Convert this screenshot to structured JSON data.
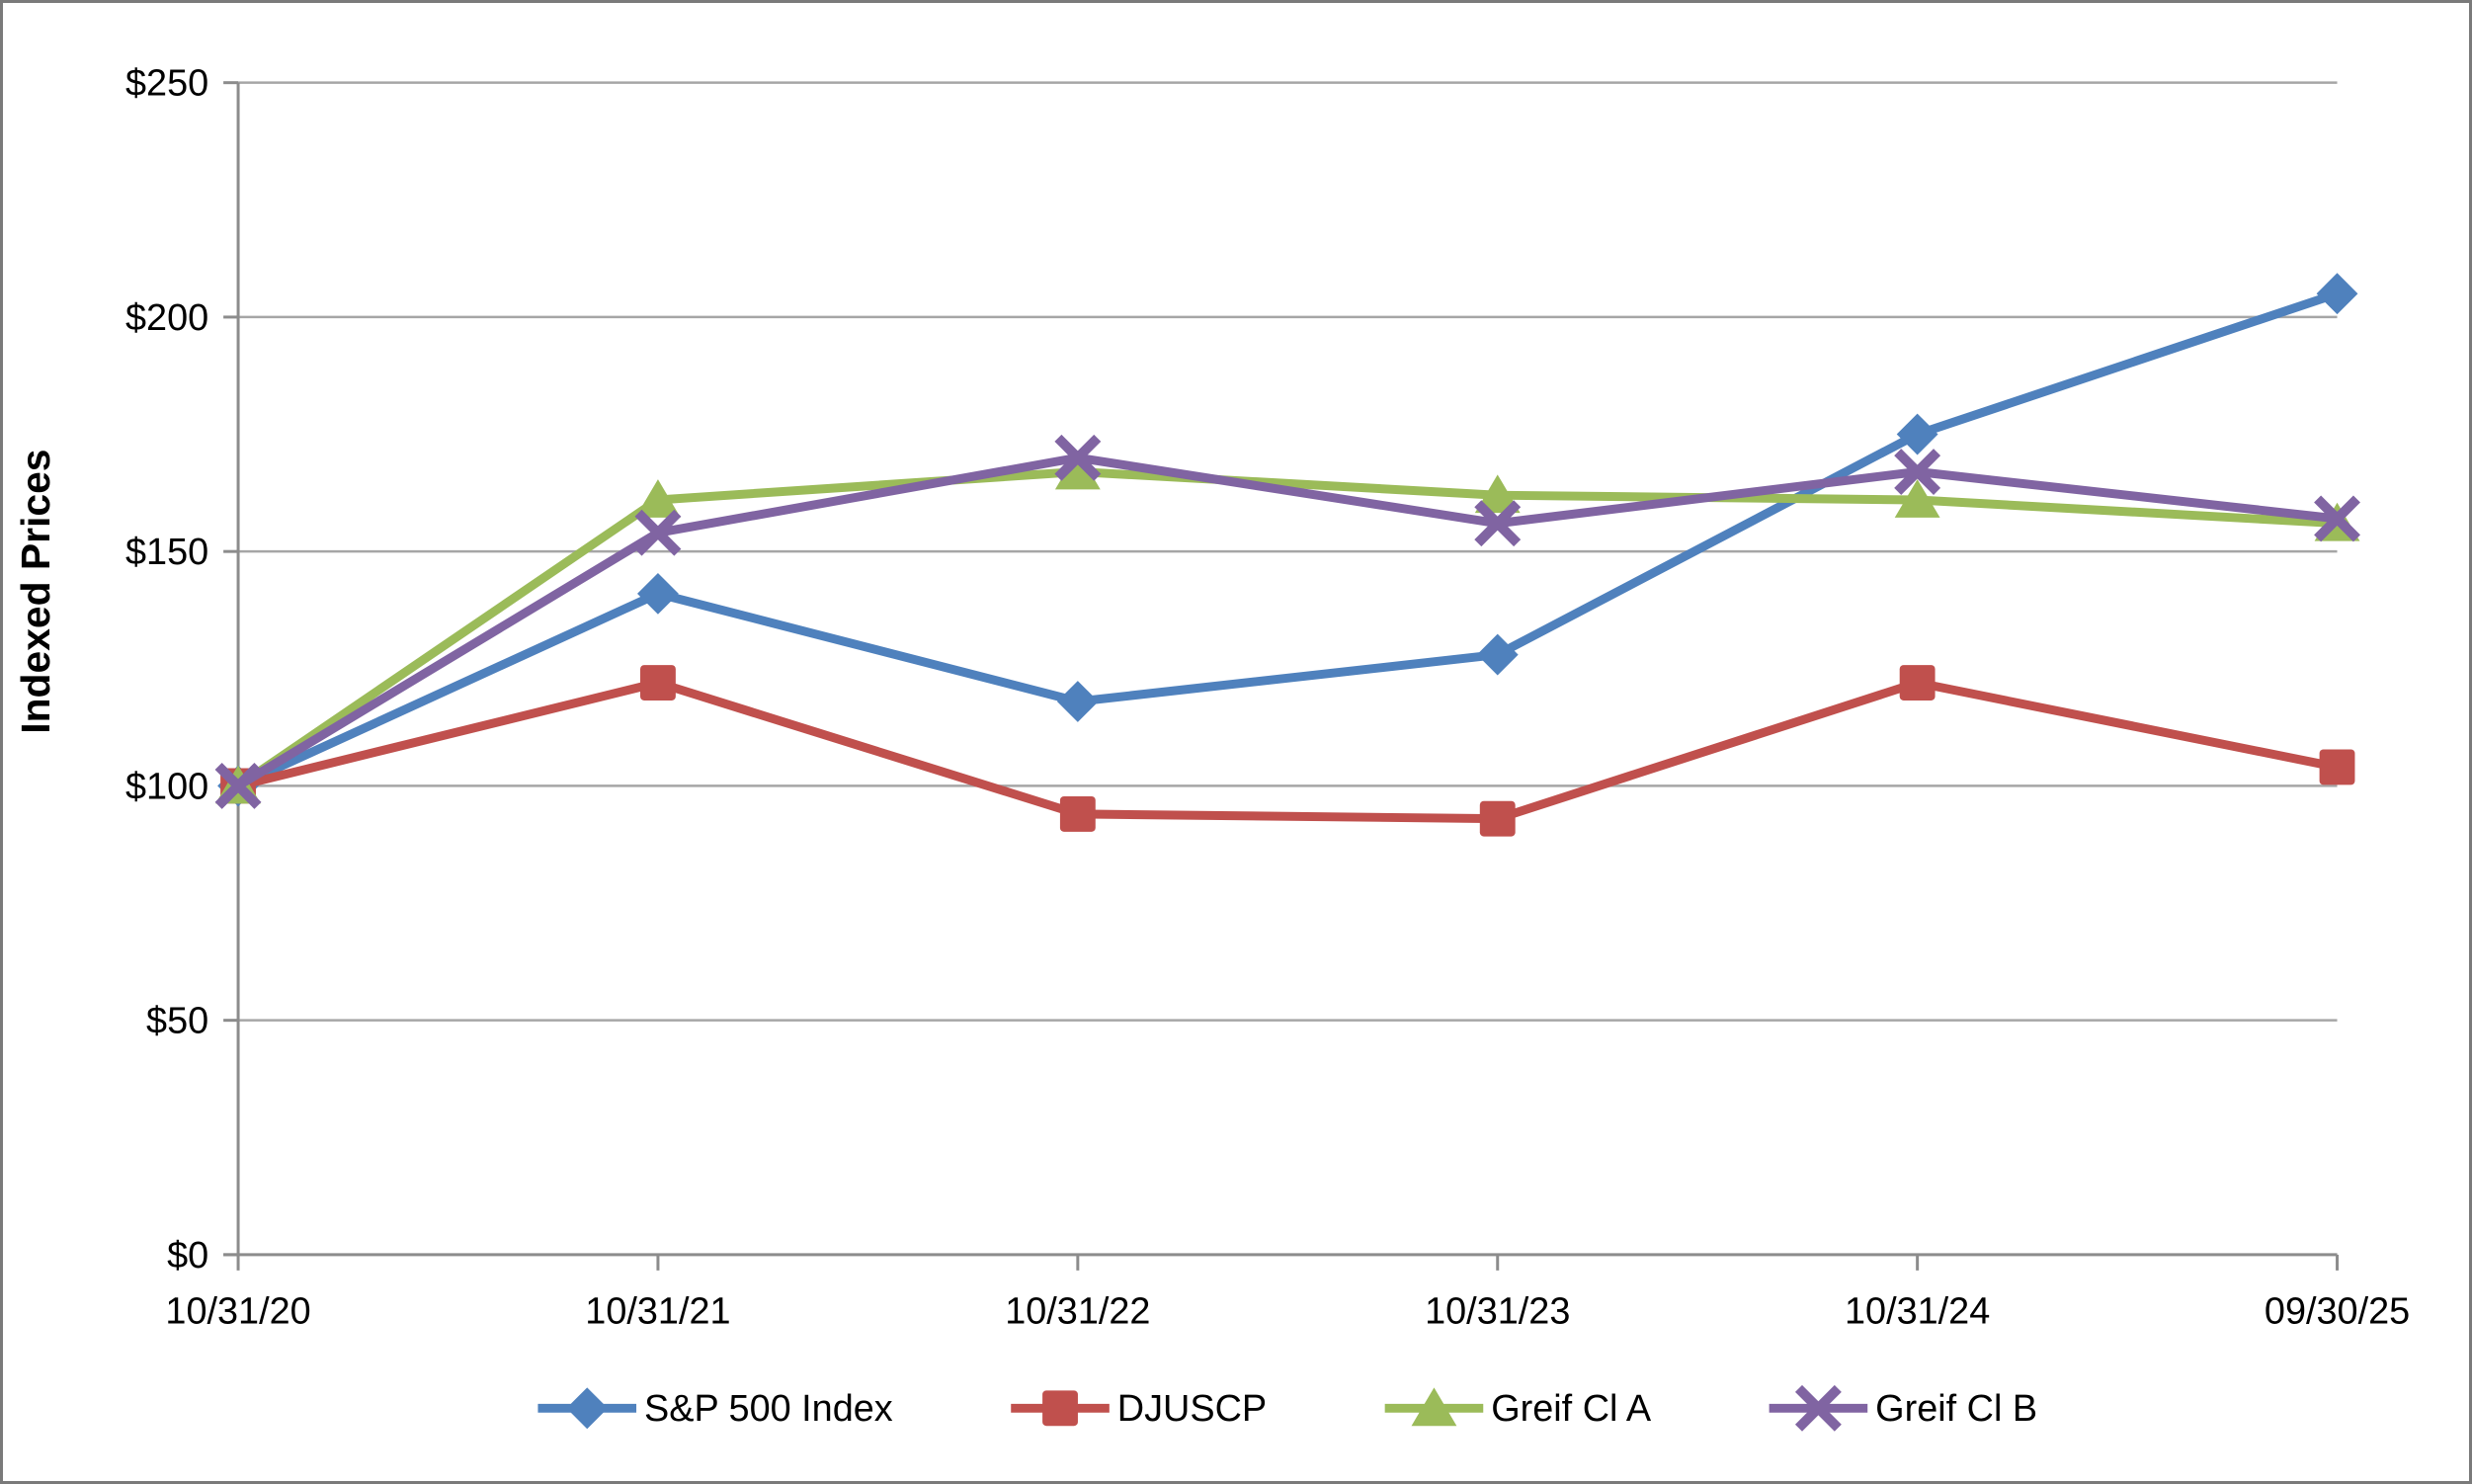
{
  "window": {
    "background_color": "#ffffff",
    "border_color": "#7a7a7a"
  },
  "chart_data": {
    "type": "line",
    "title": "",
    "xlabel": "",
    "ylabel": "Indexed Prices",
    "x_categories": [
      "10/31/20",
      "10/31/21",
      "10/31/22",
      "10/31/23",
      "10/31/24",
      "09/30/25"
    ],
    "y_tick_labels": [
      "$0",
      "$50",
      "$100",
      "$150",
      "$200",
      "$250"
    ],
    "y_tick_values": [
      0,
      50,
      100,
      150,
      200,
      250
    ],
    "ylim": [
      0,
      250
    ],
    "grid": "horizontal-on",
    "legend_position": "bottom-center",
    "series": [
      {
        "name": "S&P 500 Index",
        "marker": "diamond",
        "color": "#4F81BD",
        "values": [
          100,
          141,
          118,
          128,
          175,
          205
        ]
      },
      {
        "name": "DJUSCP",
        "marker": "square",
        "color": "#C0504D",
        "values": [
          100,
          122,
          94,
          93,
          122,
          104
        ]
      },
      {
        "name": "Greif Cl A",
        "marker": "triangle",
        "color": "#9BBB59",
        "values": [
          100,
          161,
          167,
          162,
          161,
          156
        ]
      },
      {
        "name": "Greif Cl B",
        "marker": "x",
        "color": "#8064A2",
        "values": [
          100,
          154,
          170,
          156,
          167,
          157
        ]
      }
    ],
    "axis_color": "#8C8C8C",
    "gridline_color": "#A6A6A6",
    "text_color": "#000000"
  }
}
